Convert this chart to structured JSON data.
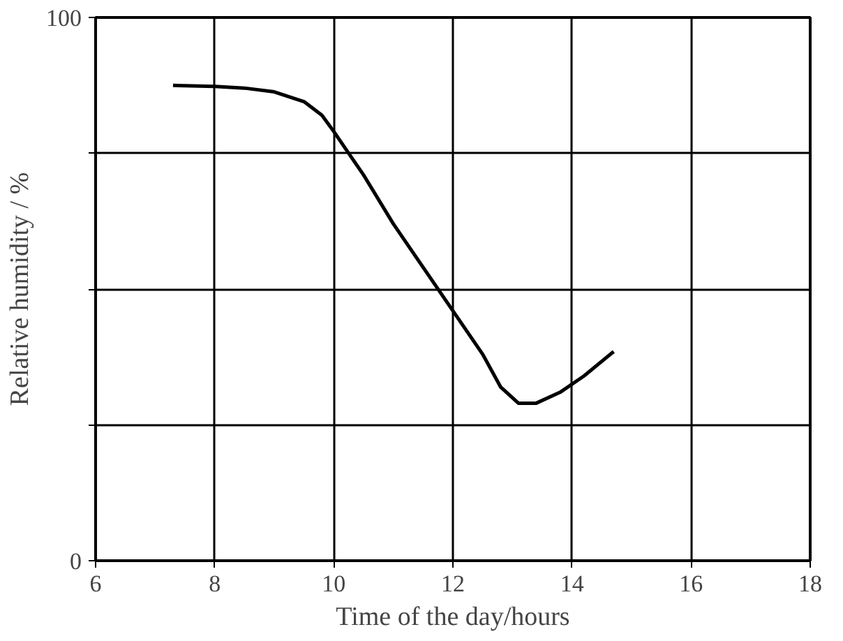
{
  "chart_data": {
    "type": "line",
    "xlabel": "Time of the day/hours",
    "ylabel": "Relative humidity / %",
    "x": [
      7.3,
      8,
      8.5,
      9,
      9.5,
      9.8,
      10,
      10.5,
      11,
      11.5,
      12,
      12.5,
      12.8,
      13.1,
      13.4,
      13.8,
      14.2,
      14.7
    ],
    "series": [
      {
        "color": "#000000",
        "values": [
          87.5,
          87.3,
          87,
          86.3,
          84.5,
          82,
          79,
          71,
          62,
          54,
          46,
          38,
          32,
          29,
          29,
          31,
          34,
          38.5
        ]
      }
    ],
    "xlim": [
      6,
      18
    ],
    "ylim": [
      0,
      100
    ],
    "xticks": [
      6,
      8,
      10,
      12,
      14,
      16,
      18
    ],
    "yticks": [
      0,
      {
        "value": 25,
        "label": null
      },
      {
        "value": 50,
        "label": null
      },
      {
        "value": 75,
        "label": null
      },
      100
    ],
    "grid": true,
    "marker": "none",
    "line_style": "solid"
  }
}
